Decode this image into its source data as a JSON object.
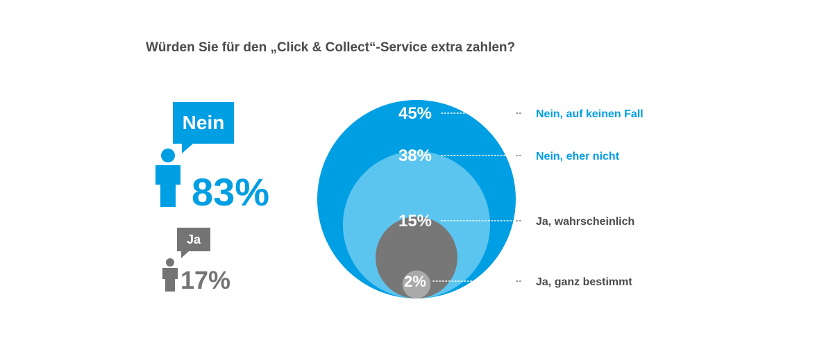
{
  "title": "Würden Sie für den „Click & Collect“-Service extra zahlen?",
  "summary": {
    "nein": {
      "label": "Nein",
      "value": "83%",
      "color": "#009ee3",
      "icon": "person-icon"
    },
    "ja": {
      "label": "Ja",
      "value": "17%",
      "color": "#747474",
      "icon": "person-icon"
    }
  },
  "chart_data": {
    "type": "nested-circles",
    "title": "Würden Sie für den „Click & Collect“-Service extra zahlen?",
    "segments": [
      {
        "label": "Nein, auf keinen Fall",
        "value": 45,
        "display": "45%",
        "fill": "#009ee3",
        "label_color": "#009ee3"
      },
      {
        "label": "Nein, eher nicht",
        "value": 38,
        "display": "38%",
        "fill": "#5bc5f0",
        "label_color": "#009ee3"
      },
      {
        "label": "Ja, wahrscheinlich",
        "value": 15,
        "display": "15%",
        "fill": "#777777",
        "label_color": "#4a4a4a"
      },
      {
        "label": "Ja, ganz bestimmt",
        "value": 2,
        "display": "2%",
        "fill": "#aaaaaa",
        "label_color": "#4a4a4a"
      }
    ],
    "leader_style": "dotted",
    "leader_color": "#777777"
  }
}
